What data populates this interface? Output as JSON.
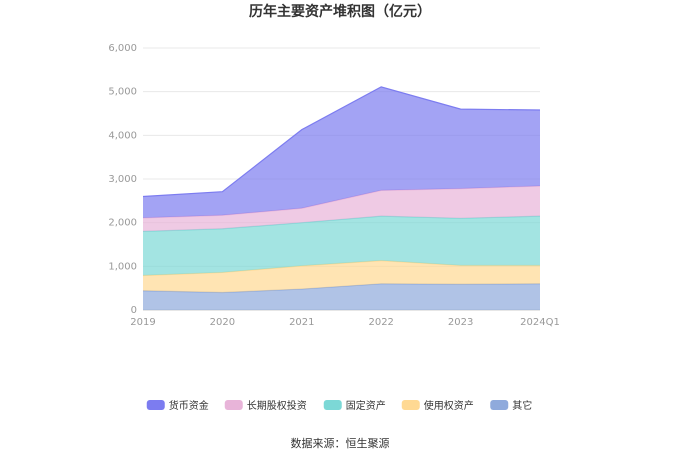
{
  "chart_data": {
    "type": "area",
    "stacked": true,
    "title": "历年主要资产堆积图（亿元）",
    "categories": [
      "2019",
      "2020",
      "2021",
      "2022",
      "2023",
      "2024Q1"
    ],
    "ylim": [
      0,
      6000
    ],
    "yticks": [
      "0",
      "1,000",
      "2,000",
      "3,000",
      "4,000",
      "5,000",
      "6,000"
    ],
    "grid": true,
    "legend_position": "bottom",
    "series": [
      {
        "name": "其它",
        "color": "#8FAADC",
        "values": [
          440,
          400,
          480,
          600,
          590,
          600
        ]
      },
      {
        "name": "使用权资产",
        "color": "#FFD993",
        "values": [
          350,
          460,
          530,
          530,
          430,
          420
        ]
      },
      {
        "name": "固定资产",
        "color": "#7CD8D6",
        "values": [
          1010,
          1000,
          990,
          1020,
          1080,
          1130
        ]
      },
      {
        "name": "长期股权投资",
        "color": "#E8B4D9",
        "values": [
          310,
          310,
          330,
          590,
          680,
          690
        ]
      },
      {
        "name": "货币资金",
        "color": "#7C7CF0",
        "values": [
          490,
          540,
          1800,
          2370,
          1820,
          1740
        ]
      }
    ],
    "legend_order": [
      "货币资金",
      "长期股权投资",
      "固定资产",
      "使用权资产",
      "其它"
    ],
    "source": "数据来源：恒生聚源"
  }
}
